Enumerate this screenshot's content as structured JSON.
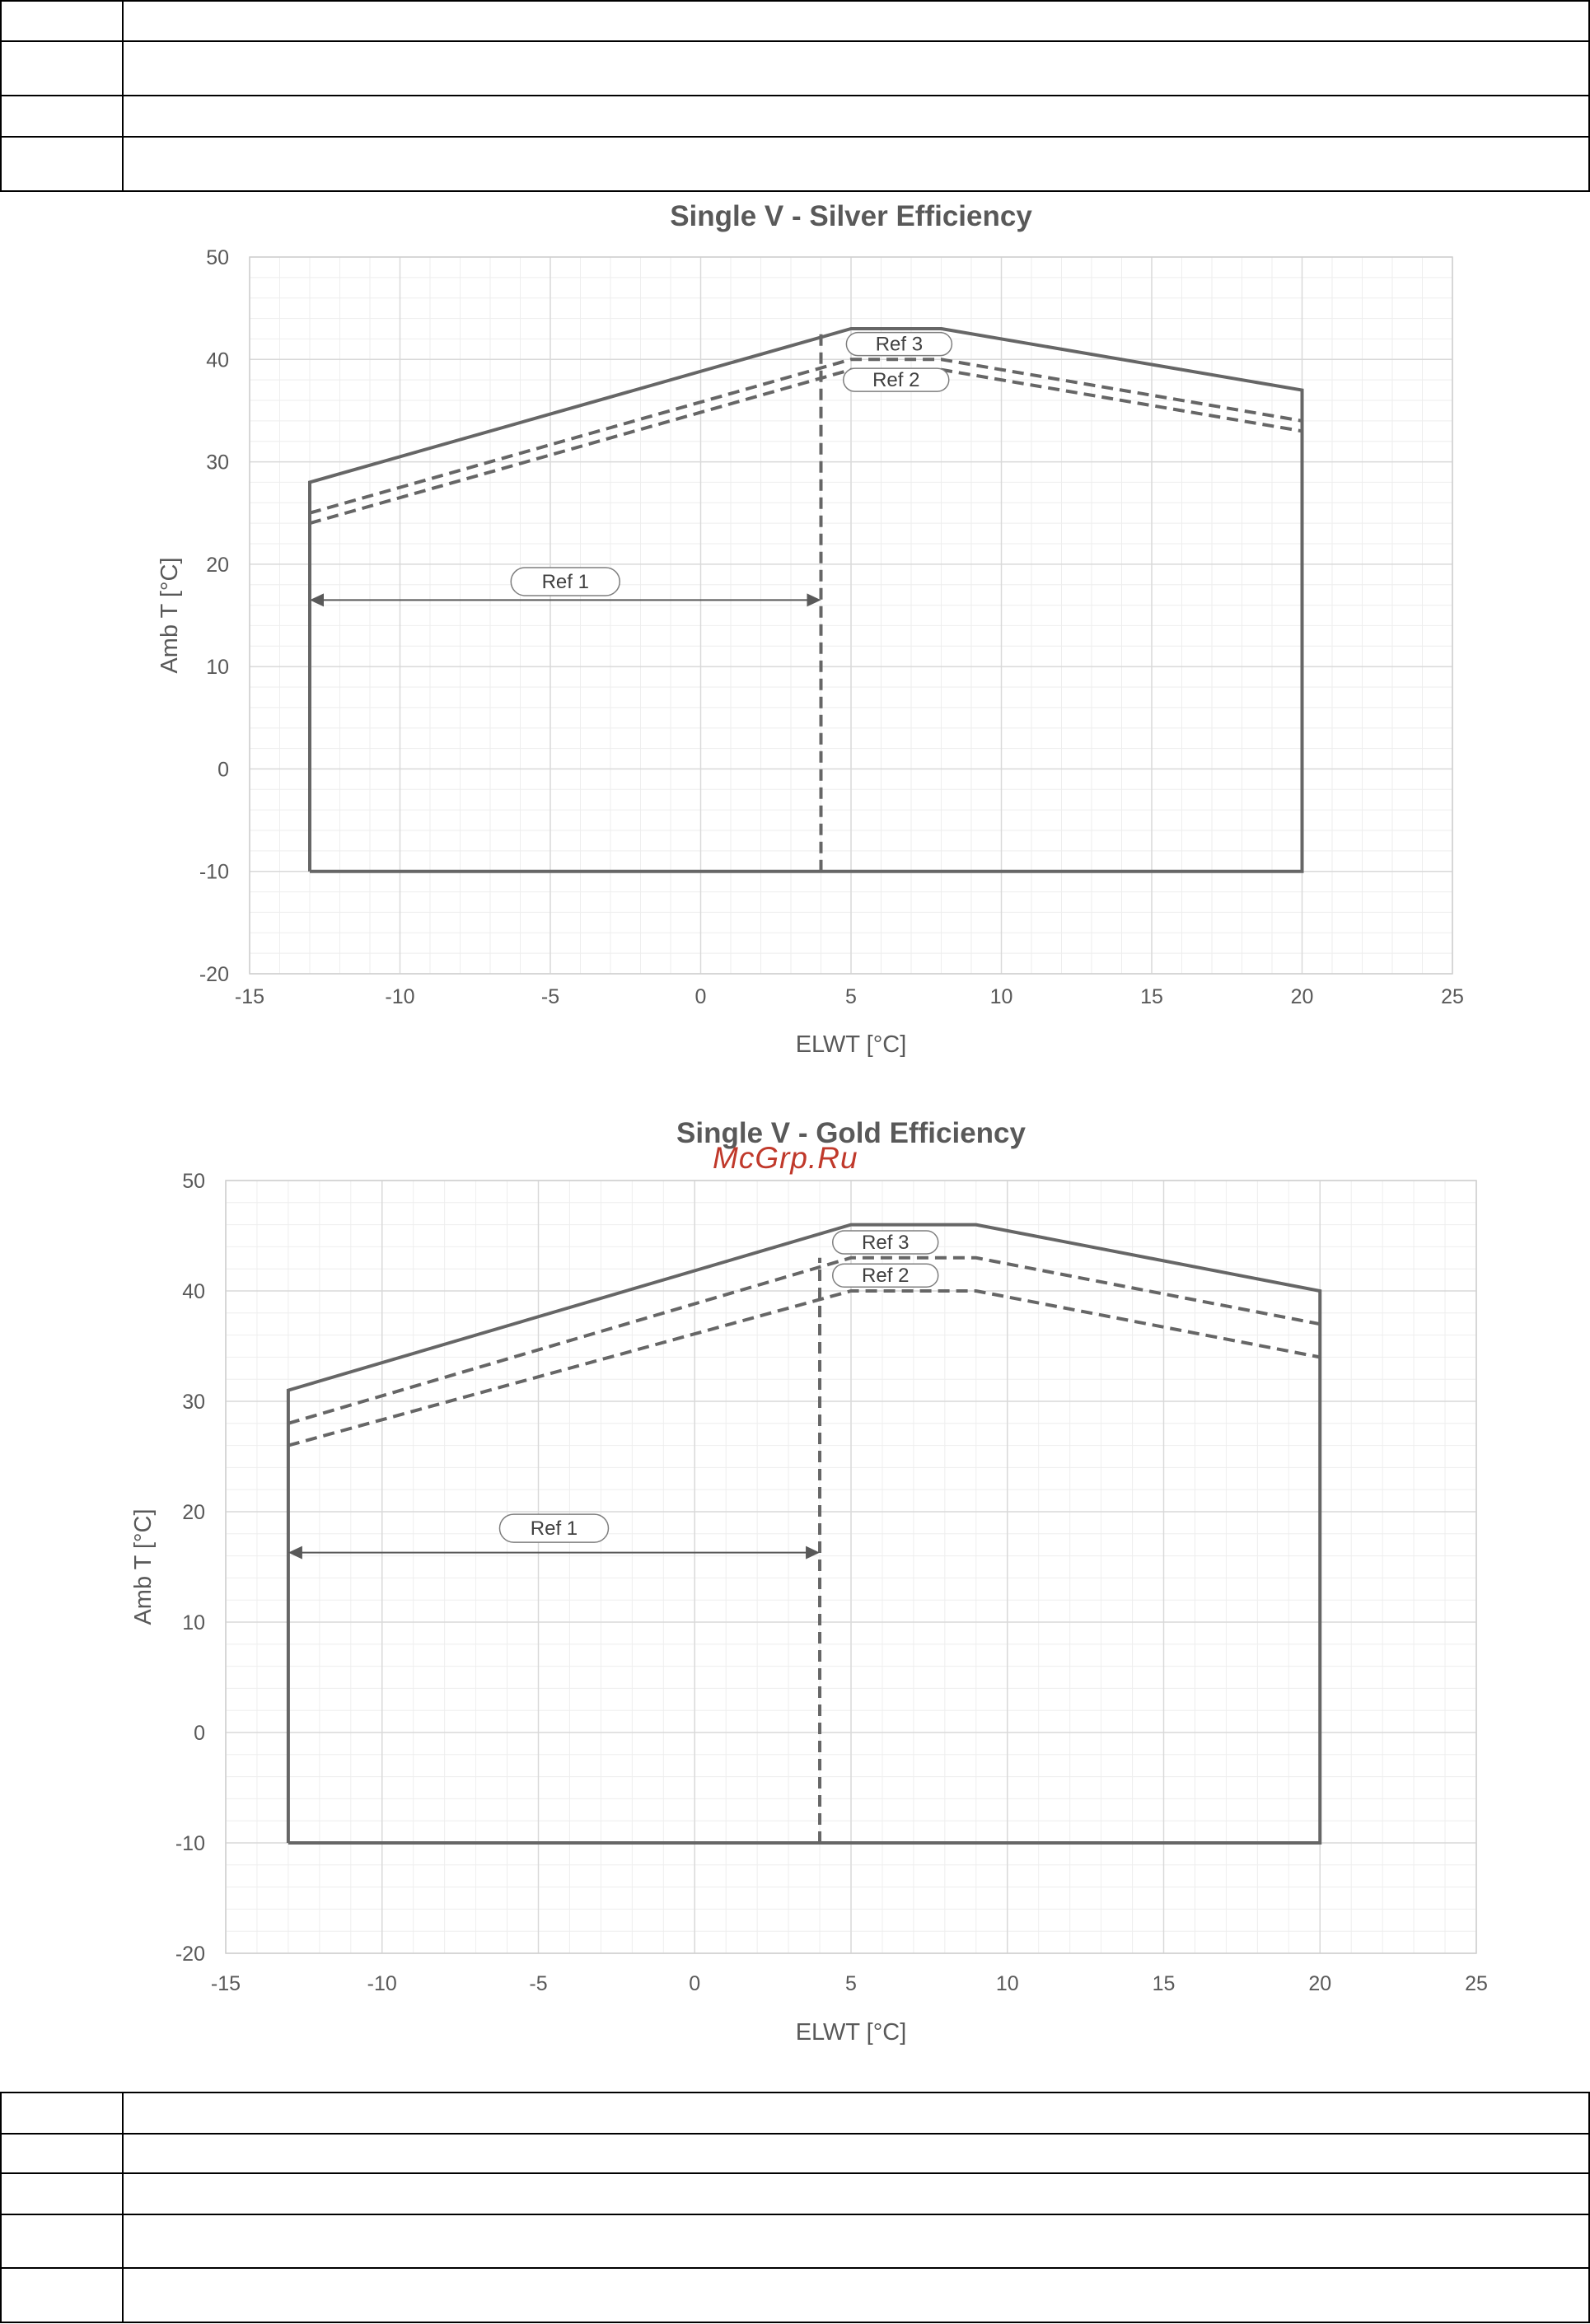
{
  "watermark": "McGrp.Ru",
  "table_rows": {
    "top": 4,
    "bottom": 5
  },
  "colors": {
    "envelope": "#666666",
    "grid_major": "#d9d9d9",
    "grid_minor": "#eeeeee",
    "watermark": "#c0392b"
  },
  "chart_data": [
    {
      "type": "line",
      "title": "Single V - Silver Efficiency",
      "xlabel": "ELWT [°C]",
      "ylabel": "Amb T [°C]",
      "xlim": [
        -15,
        25
      ],
      "ylim": [
        -20,
        50
      ],
      "xticks": [
        -15,
        -10,
        -5,
        0,
        5,
        10,
        15,
        20,
        25
      ],
      "yticks": [
        -20,
        -10,
        0,
        10,
        20,
        30,
        40,
        50
      ],
      "grid": true,
      "series": [
        {
          "style": "solid",
          "x": [
            -13,
            -13,
            5,
            8,
            20,
            20,
            -13
          ],
          "y": [
            -10,
            28,
            43,
            43,
            37,
            -10,
            -10
          ]
        },
        {
          "style": "dashed",
          "x": [
            -13,
            5,
            8,
            20
          ],
          "y": [
            25,
            40,
            40,
            34
          ]
        },
        {
          "style": "dashed",
          "x": [
            -13,
            5,
            8,
            20
          ],
          "y": [
            24,
            39,
            39,
            33
          ]
        },
        {
          "style": "dashed",
          "x": [
            4,
            4
          ],
          "y": [
            -10,
            43
          ]
        }
      ],
      "ref1": {
        "label": "Ref 1",
        "x_from": -13,
        "x_to": 4,
        "y": 16.5,
        "label_y": 18.3
      },
      "annotations": [
        {
          "label": "Ref 3",
          "x": 6.6,
          "y": 41.5
        },
        {
          "label": "Ref 2",
          "x": 6.5,
          "y": 38.0
        }
      ]
    },
    {
      "type": "line",
      "title": "Single V - Gold Efficiency",
      "xlabel": "ELWT [°C]",
      "ylabel": "Amb T [°C]",
      "xlim": [
        -15,
        25
      ],
      "ylim": [
        -20,
        50
      ],
      "xticks": [
        -15,
        -10,
        -5,
        0,
        5,
        10,
        15,
        20,
        25
      ],
      "yticks": [
        -20,
        -10,
        0,
        10,
        20,
        30,
        40,
        50
      ],
      "grid": true,
      "series": [
        {
          "style": "solid",
          "x": [
            -13,
            -13,
            5,
            9,
            20,
            20,
            -13
          ],
          "y": [
            -10,
            31,
            46,
            46,
            40,
            -10,
            -10
          ]
        },
        {
          "style": "dashed",
          "x": [
            -13,
            5,
            9,
            20
          ],
          "y": [
            28,
            43,
            43,
            37
          ]
        },
        {
          "style": "dashed",
          "x": [
            -13,
            5,
            9,
            20
          ],
          "y": [
            26,
            40,
            40,
            34
          ]
        },
        {
          "style": "dashed",
          "x": [
            4,
            4
          ],
          "y": [
            -10,
            43
          ]
        }
      ],
      "ref1": {
        "label": "Ref 1",
        "x_from": -13,
        "x_to": 4,
        "y": 16.3,
        "label_y": 18.5
      },
      "annotations": [
        {
          "label": "Ref 3",
          "x": 6.1,
          "y": 44.4
        },
        {
          "label": "Ref 2",
          "x": 6.1,
          "y": 41.4
        }
      ]
    }
  ]
}
